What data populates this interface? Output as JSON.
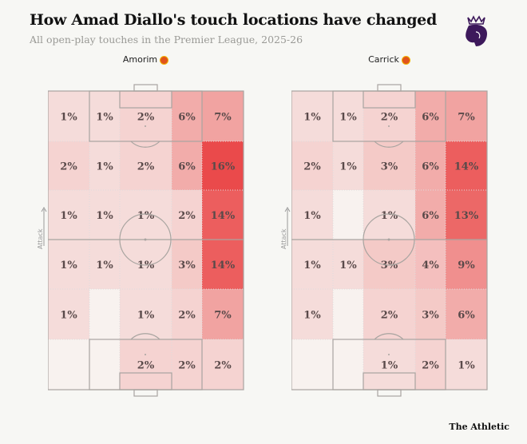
{
  "header": {
    "title": "How Amad Diallo's touch locations have changed",
    "subtitle": "All open-play touches in the Premier League, 2025-26"
  },
  "footer": {
    "brand": "The Athletic"
  },
  "logo": {
    "icon": "premier-league-lion-icon",
    "color": "#3d195b"
  },
  "attack_label": "Attack",
  "chart_data": [
    {
      "type": "heatmap",
      "title": "Amorim",
      "rows_top_to_bottom": [
        [
          "1%",
          "1%",
          "2%",
          "6%",
          "7%"
        ],
        [
          "2%",
          "1%",
          "2%",
          "6%",
          "16%"
        ],
        [
          "1%",
          "1%",
          "1%",
          "2%",
          "14%"
        ],
        [
          "1%",
          "1%",
          "1%",
          "3%",
          "14%"
        ],
        [
          "1%",
          "",
          "1%",
          "2%",
          "7%"
        ],
        [
          "",
          "",
          "2%",
          "2%",
          "2%"
        ]
      ],
      "values": [
        [
          1,
          1,
          2,
          6,
          7
        ],
        [
          2,
          1,
          2,
          6,
          16
        ],
        [
          1,
          1,
          1,
          2,
          14
        ],
        [
          1,
          1,
          1,
          3,
          14
        ],
        [
          1,
          0,
          1,
          2,
          7
        ],
        [
          0,
          0,
          2,
          2,
          2
        ]
      ]
    },
    {
      "type": "heatmap",
      "title": "Carrick",
      "rows_top_to_bottom": [
        [
          "1%",
          "1%",
          "2%",
          "6%",
          "7%"
        ],
        [
          "2%",
          "1%",
          "3%",
          "6%",
          "14%"
        ],
        [
          "1%",
          "",
          "1%",
          "6%",
          "13%"
        ],
        [
          "1%",
          "1%",
          "3%",
          "4%",
          "9%"
        ],
        [
          "1%",
          "",
          "2%",
          "3%",
          "6%"
        ],
        [
          "",
          "",
          "1%",
          "2%",
          "1%"
        ]
      ],
      "values": [
        [
          1,
          1,
          2,
          6,
          7
        ],
        [
          2,
          1,
          3,
          6,
          14
        ],
        [
          1,
          0,
          1,
          6,
          13
        ],
        [
          1,
          1,
          3,
          4,
          9
        ],
        [
          1,
          0,
          2,
          3,
          6
        ],
        [
          0,
          0,
          1,
          2,
          1
        ]
      ]
    }
  ],
  "colors": {
    "heat": "#e8393a",
    "line": "#a8a4a0"
  }
}
